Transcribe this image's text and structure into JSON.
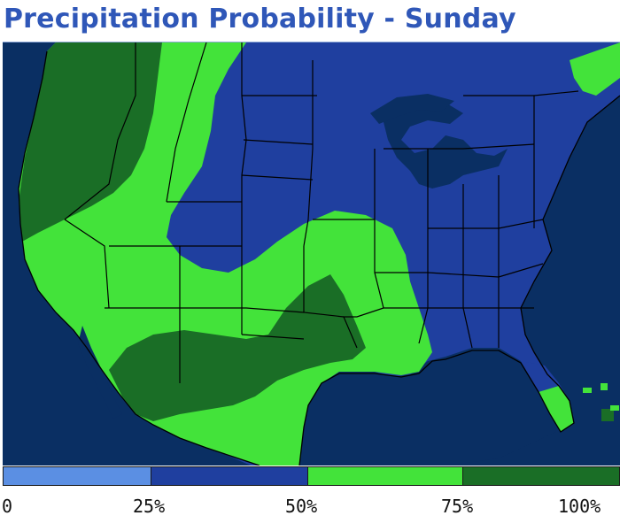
{
  "title": "Precipitation Probability - Sunday",
  "colors": {
    "ocean": "#0a2f63",
    "land_under_25": "#5b8fe3",
    "land_25_50": "#1f3f9f",
    "land_50_75": "#43e33a",
    "land_75_100": "#1a6e26",
    "border_lines": "#000000"
  },
  "legend": {
    "bins": [
      {
        "range": "0-25%",
        "color": "#5b8fe3"
      },
      {
        "range": "25-50%",
        "color": "#1f3f9f"
      },
      {
        "range": "50-75%",
        "color": "#43e33a"
      },
      {
        "range": "75-100%",
        "color": "#1a6e26"
      }
    ],
    "ticks": [
      "0",
      "25%",
      "50%",
      "75%",
      "100%"
    ]
  }
}
